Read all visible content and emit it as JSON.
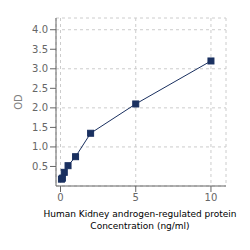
{
  "chart_data": {
    "type": "line",
    "xlabel": "Human Kidney androgen-regulated protein\nConcentration (ng/ml)",
    "ylabel": "OD",
    "x": [
      0.0625,
      0.125,
      0.25,
      0.5,
      1,
      2,
      5,
      10
    ],
    "values": [
      0.175,
      0.2,
      0.35,
      0.52,
      0.75,
      1.35,
      2.1,
      3.2
    ],
    "xlim": [
      -0.3,
      11
    ],
    "ylim": [
      0.0,
      4.3
    ],
    "xticks": [
      0,
      5,
      10
    ],
    "yticks": [
      0.5,
      {
        "value": 1.0,
        "label": "1.0"
      },
      1.5,
      {
        "value": 2.0,
        "label": "2.0"
      },
      2.5,
      {
        "value": 3.0,
        "label": "3.0"
      },
      3.5,
      {
        "value": 4.0,
        "label": "4.0"
      }
    ],
    "grid": true,
    "marker": "square",
    "color": "#1a3060"
  }
}
